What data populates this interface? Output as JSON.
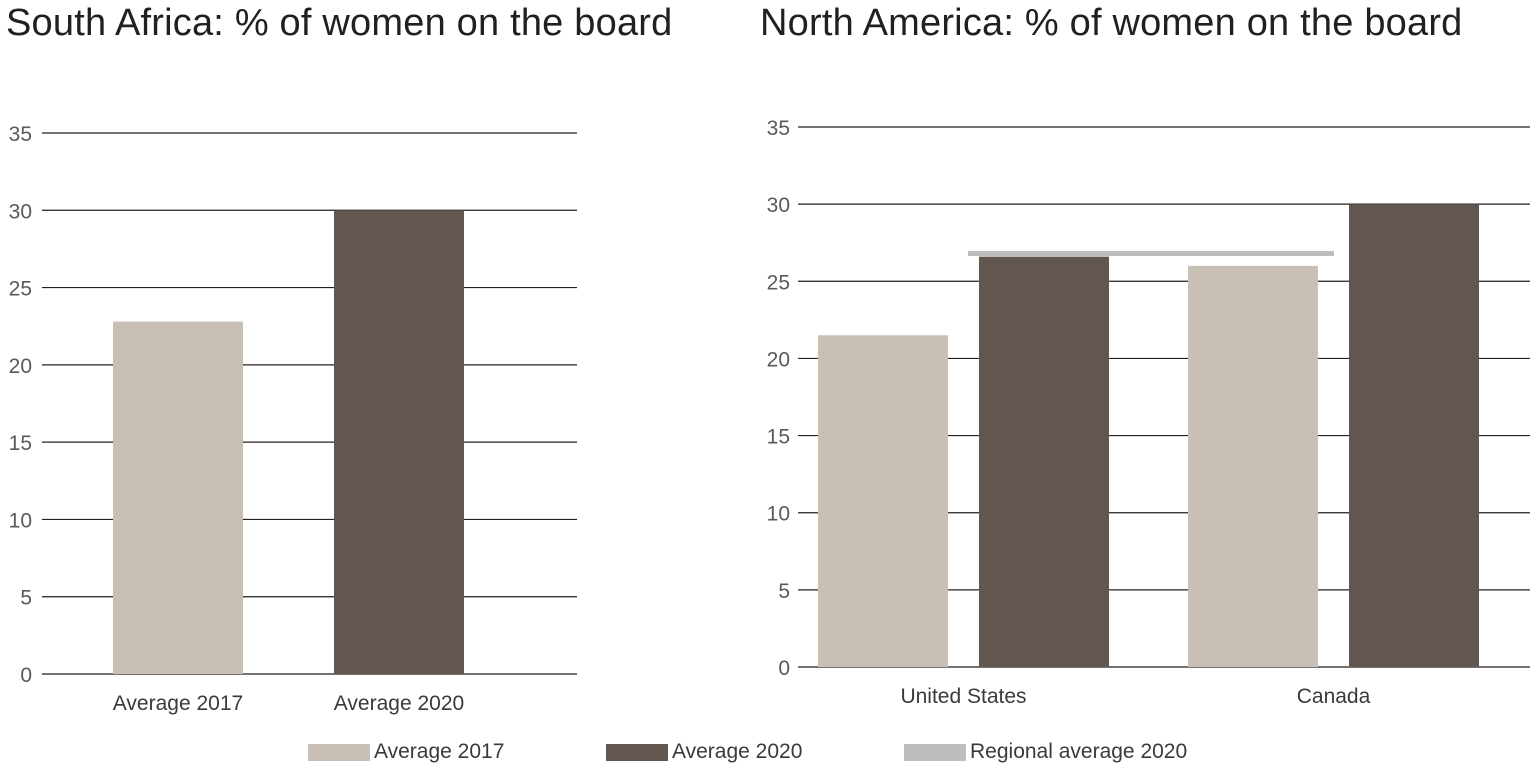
{
  "colors": {
    "avg2017": "#c9c0b5",
    "avg2020": "#625650",
    "regional": "#bdbdbd",
    "grid": "#231f20"
  },
  "legend": [
    {
      "label": "Average 2017",
      "color_key": "avg2017"
    },
    {
      "label": "Average 2020",
      "color_key": "avg2020"
    },
    {
      "label": "Regional average 2020",
      "color_key": "regional"
    }
  ],
  "chart_data": [
    {
      "type": "bar",
      "title": "South Africa: % of women on the board",
      "categories": [
        "Average 2017",
        "Average 2020"
      ],
      "values": [
        22.8,
        30.0
      ],
      "bar_colors": [
        "avg2017",
        "avg2020"
      ],
      "yticks": [
        "0",
        "5",
        "10",
        "15",
        "20",
        "25",
        "30",
        "35"
      ],
      "ylim": [
        0,
        35
      ],
      "grid": true
    },
    {
      "type": "bar",
      "title": "North America: % of women on the board",
      "categories": [
        "United States",
        "Canada"
      ],
      "series": [
        {
          "name": "Average 2017",
          "values": [
            21.5,
            26.0
          ]
        },
        {
          "name": "Average 2020",
          "values": [
            26.6,
            30.0
          ]
        }
      ],
      "regional_average": {
        "name": "Regional average 2020",
        "value": 26.8
      },
      "yticks": [
        "0",
        "5",
        "10",
        "15",
        "20",
        "25",
        "30",
        "35"
      ],
      "ylim": [
        0,
        35
      ],
      "grid": true,
      "legend": "bottom"
    }
  ]
}
